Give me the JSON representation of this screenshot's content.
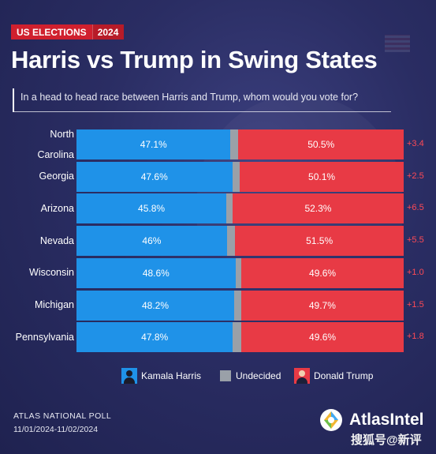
{
  "tag": {
    "category": "US ELECTIONS",
    "year": "2024"
  },
  "title": "Harris vs Trump in Swing States",
  "question": "In a head to head race between Harris and Trump, whom would you vote for?",
  "colors": {
    "harris": "#1f92e8",
    "undecided": "#9aa0a8",
    "trump": "#e83a45",
    "margin": "#ff4a55"
  },
  "chart_data": {
    "type": "bar",
    "orientation": "horizontal",
    "stacked": true,
    "xlim": [
      0,
      100
    ],
    "categories": [
      "North Carolina",
      "Georgia",
      "Arizona",
      "Nevada",
      "Wisconsin",
      "Michigan",
      "Pennsylvania"
    ],
    "category_labels": [
      [
        "North",
        "Carolina"
      ],
      [
        "Georgia"
      ],
      [
        "Arizona"
      ],
      [
        "Nevada"
      ],
      [
        "Wisconsin"
      ],
      [
        "Michigan"
      ],
      [
        "Pennsylvania"
      ]
    ],
    "series": [
      {
        "name": "Kamala Harris",
        "values": [
          47.1,
          47.6,
          45.8,
          46.0,
          48.6,
          48.2,
          47.8
        ],
        "labels": [
          "47.1%",
          "47.6%",
          "45.8%",
          "46%",
          "48.6%",
          "48.2%",
          "47.8%"
        ]
      },
      {
        "name": "Undecided",
        "values": [
          2.4,
          2.3,
          1.9,
          2.5,
          1.8,
          2.1,
          2.6
        ]
      },
      {
        "name": "Donald Trump",
        "values": [
          50.5,
          50.1,
          52.3,
          51.5,
          49.6,
          49.7,
          49.6
        ],
        "labels": [
          "50.5%",
          "50.1%",
          "52.3%",
          "51.5%",
          "49.6%",
          "49.7%",
          "49.6%"
        ]
      }
    ],
    "margins": [
      "+3.4",
      "+2.5",
      "+6.5",
      "+5.5",
      "+1.0",
      "+1.5",
      "+1.8"
    ],
    "legend": {
      "position": "bottom",
      "items": [
        "Kamala Harris",
        "Undecided",
        "Donald Trump"
      ]
    }
  },
  "footer": {
    "poll": "ATLAS NATIONAL POLL",
    "dates": "11/01/2024-11/02/2024",
    "brand": "AtlasIntel",
    "watermark": "搜狐号@新评"
  }
}
